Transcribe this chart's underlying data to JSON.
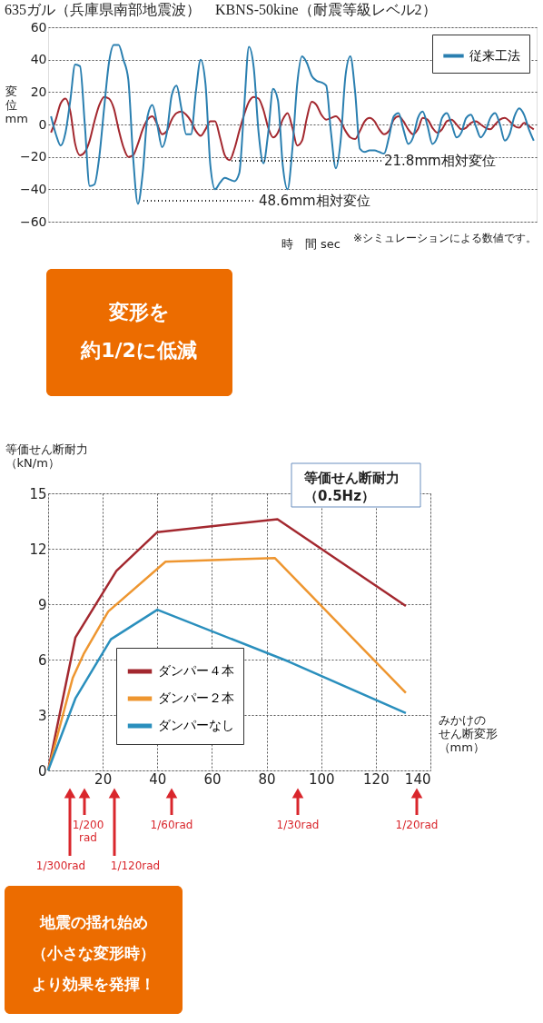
{
  "chart_data": [
    {
      "type": "line",
      "title": "635ガル（兵庫県南部地震波）　KBNS-50kine（耐震等級レベル2）",
      "xlabel": "時　間 sec",
      "ylabel": "変位mm",
      "categories": [
        null,
        null,
        null,
        null,
        null,
        null,
        null,
        null,
        null,
        null,
        null,
        null,
        null,
        null,
        null,
        null,
        null,
        null,
        null,
        null,
        null,
        null,
        null,
        null,
        null,
        null,
        null,
        null,
        null,
        null,
        null,
        null,
        null,
        null,
        null,
        null,
        null,
        null,
        null,
        null,
        null,
        null,
        null,
        null,
        null,
        null,
        null,
        null,
        null,
        null,
        null,
        null,
        null,
        null,
        null,
        null,
        null,
        null,
        null,
        null,
        null,
        null,
        null,
        null,
        null,
        null,
        null,
        null,
        null,
        null,
        null,
        null,
        null,
        null,
        null,
        null,
        null,
        null,
        null,
        null,
        null,
        null,
        null,
        null,
        null,
        null,
        null,
        null,
        null,
        null,
        null,
        null,
        null,
        null,
        null,
        null,
        null,
        null,
        null,
        null,
        null
      ],
      "series": [
        {
          "color": "#a3282f",
          "values": [
            -5,
            3,
            13,
            16,
            8,
            -12,
            -19,
            -17,
            -10,
            2,
            12,
            17,
            16,
            10,
            -3,
            -14,
            -20,
            -19,
            -12,
            -3,
            3,
            5,
            0,
            -6,
            -4,
            3,
            7,
            8,
            6,
            2,
            -4,
            -7,
            -3,
            2,
            2,
            -8,
            -19,
            -22,
            -15,
            -4,
            6,
            14,
            17,
            16,
            9,
            -2,
            -8,
            -5,
            3,
            7,
            -2,
            -13,
            -10,
            4,
            14,
            12,
            6,
            3,
            4,
            5,
            2,
            -4,
            -8,
            -9,
            -4,
            2,
            4,
            2,
            -3,
            -6,
            -4,
            3,
            5,
            2,
            -3,
            -6,
            -3,
            4,
            3,
            -2,
            -5,
            -3,
            2,
            3,
            0,
            -3,
            -2,
            1,
            2,
            0,
            -2,
            -3,
            0,
            3,
            4,
            2,
            -1,
            -2,
            1,
            -1,
            -3
          ]
        },
        {
          "name": "従来工法",
          "color": "#2a7fb0",
          "values": [
            5,
            -6,
            -13,
            -5,
            15,
            37,
            36,
            0,
            -38,
            -37,
            -20,
            10,
            38,
            49,
            49,
            40,
            28,
            -20,
            -49,
            -30,
            5,
            12,
            0,
            -14,
            -5,
            18,
            24,
            10,
            -6,
            -6,
            20,
            40,
            25,
            -25,
            -40,
            -36,
            -33,
            -34,
            -35,
            -30,
            10,
            48,
            35,
            -5,
            -24,
            -5,
            22,
            15,
            -25,
            -40,
            -15,
            25,
            42,
            38,
            30,
            27,
            26,
            24,
            -5,
            -27,
            -10,
            30,
            42,
            20,
            -15,
            -17,
            -16,
            -16,
            -17,
            -18,
            -8,
            5,
            7,
            -3,
            -12,
            -8,
            4,
            8,
            -1,
            -12,
            -8,
            4,
            7,
            0,
            -8,
            -5,
            4,
            6,
            -1,
            -8,
            -4,
            4,
            7,
            0,
            -10,
            -6,
            5,
            10,
            6,
            -3,
            -10
          ]
        }
      ],
      "ylim": [
        -60,
        60
      ],
      "yticks": [
        -60,
        -40,
        -20,
        0,
        20,
        40,
        60
      ],
      "grid": "y",
      "legend": "top right",
      "tick_labels": "y",
      "annotations": [
        "21.8mm相対変位",
        "48.6mm相対変位",
        "※シミュレーションによる数値です。",
        "変形を約1/2に低減"
      ]
    },
    {
      "type": "line",
      "title": "等価せん断耐力（0.5Hz）",
      "xlabel": "みかけのせん断変形（mm）",
      "ylabel": "等価せん断耐力（kN/m）",
      "series": [
        {
          "name": "ダンパー４本",
          "color": "#a3282f",
          "x": [
            0,
            10,
            25,
            40,
            84,
            131
          ],
          "values": [
            0,
            7.2,
            10.8,
            12.9,
            13.6,
            8.9
          ]
        },
        {
          "name": "ダンパー２本",
          "color": "#ee9630",
          "x": [
            0,
            9,
            13,
            22,
            43,
            83,
            131
          ],
          "values": [
            0,
            5.0,
            6.3,
            8.6,
            11.3,
            11.5,
            4.2
          ]
        },
        {
          "name": "ダンパーなし",
          "color": "#2a8fbd",
          "x": [
            0,
            10,
            23,
            40,
            88,
            131
          ],
          "values": [
            0,
            3.9,
            7.1,
            8.7,
            5.9,
            3.1
          ]
        }
      ],
      "xlim": [
        0,
        140
      ],
      "xticks": [
        {
          "value": 0,
          "label": null
        },
        20,
        40,
        60,
        80,
        100,
        120,
        140
      ],
      "ylim": [
        0,
        15
      ],
      "yticks": [
        0,
        3,
        6,
        9,
        12,
        15
      ],
      "grid": true,
      "legend": "bottom left",
      "annotations": [
        "1/300rad",
        "1/200 rad",
        "1/120rad",
        "1/60rad",
        "1/30rad",
        "1/20rad",
        "地震の揺れ始め（小さな変形時）より効果を発揮！"
      ]
    }
  ]
}
